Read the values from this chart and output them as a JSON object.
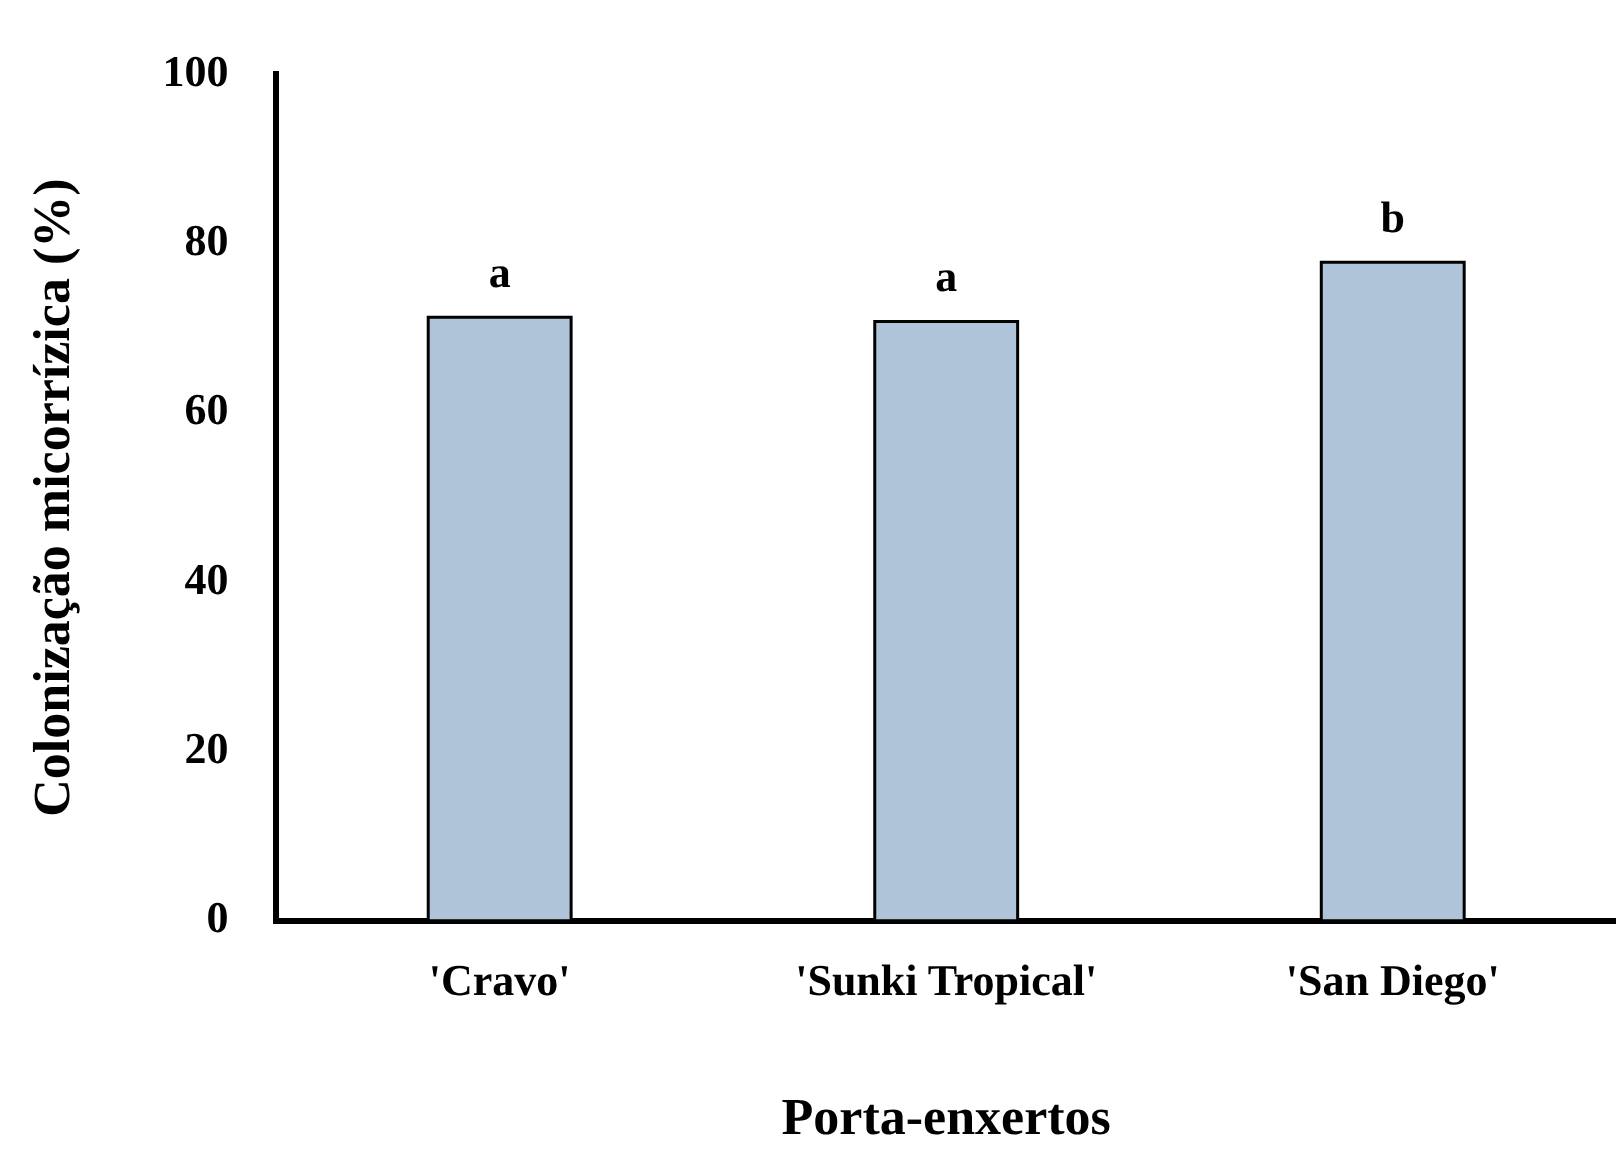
{
  "chart_data": {
    "type": "bar",
    "xlabel": "Porta-enxertos",
    "ylabel": "Colonização micorrízica (%)",
    "categories": [
      "'Cravo'",
      "'Sunki Tropical'",
      "'San Diego'"
    ],
    "values": [
      71.3,
      70.8,
      77.8
    ],
    "color": "#b0c4d9",
    "ylim": [
      0,
      100
    ],
    "yticks": [
      0,
      20,
      40,
      60,
      80,
      100
    ],
    "grid": false,
    "legend": false,
    "annotations": [
      {
        "text": "a",
        "x": "'Cravo'",
        "y": 71.3
      },
      {
        "text": "a",
        "x": "'Sunki Tropical'",
        "y": 70.8
      },
      {
        "text": "b",
        "x": "'San Diego'",
        "y": 77.8
      }
    ]
  }
}
